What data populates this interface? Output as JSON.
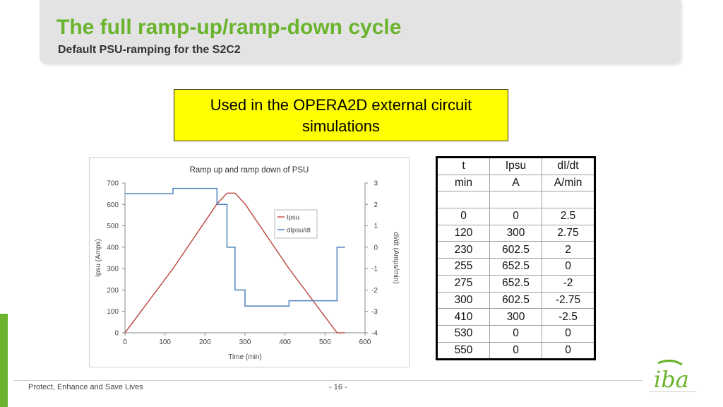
{
  "slide": {
    "title": "The full ramp-up/ramp-down cycle",
    "subtitle": "Default PSU-ramping for the S2C2",
    "callout": "Used in the OPERA2D external circuit simulations",
    "footer": "Protect, Enhance and Save Lives",
    "page_number": "- 16 -",
    "logo_text": "iba",
    "accent_color": "#6ab42d",
    "callout_color": "#ffff00"
  },
  "table": {
    "headers": [
      "t",
      "Ipsu",
      "dI/dt"
    ],
    "units": [
      "min",
      "A",
      "A/min"
    ],
    "rows": [
      [
        "",
        "",
        ""
      ],
      [
        "0",
        "0",
        "2.5"
      ],
      [
        "120",
        "300",
        "2.75"
      ],
      [
        "230",
        "602.5",
        "2"
      ],
      [
        "255",
        "652.5",
        "0"
      ],
      [
        "275",
        "652.5",
        "-2"
      ],
      [
        "300",
        "602.5",
        "-2.75"
      ],
      [
        "410",
        "300",
        "-2.5"
      ],
      [
        "530",
        "0",
        "0"
      ],
      [
        "550",
        "0",
        "0"
      ]
    ]
  },
  "chart_data": {
    "type": "line",
    "title": "Ramp up and ramp down of PSU",
    "xlabel": "Time (min)",
    "ylabel": "Ipsu (Amps)",
    "y2label": "dI/dt (Amps/min)",
    "xlim": [
      0,
      600
    ],
    "ylim": [
      0,
      700
    ],
    "y2lim": [
      -4,
      3
    ],
    "xticks": [
      "0",
      "100",
      "200",
      "300",
      "400",
      "500",
      "600"
    ],
    "yticks": [
      "0",
      "100",
      "200",
      "300",
      "400",
      "500",
      "600",
      "700"
    ],
    "y2ticks": [
      "-4",
      "-3",
      "-2",
      "-1",
      "0",
      "1",
      "2",
      "3"
    ],
    "grid": false,
    "legend": "center-right",
    "series": [
      {
        "name": "Ipsu",
        "axis": "left",
        "color": "#c0504d",
        "x": [
          0,
          120,
          230,
          255,
          275,
          300,
          410,
          530,
          550
        ],
        "y": [
          0,
          300,
          602.5,
          652.5,
          652.5,
          602.5,
          300,
          0,
          0
        ]
      },
      {
        "name": "dIpsu/dt",
        "axis": "right",
        "color": "#4f81bd",
        "step": true,
        "x": [
          0,
          120,
          230,
          255,
          275,
          300,
          410,
          530,
          550
        ],
        "y": [
          2.5,
          2.75,
          2,
          0,
          -2,
          -2.75,
          -2.5,
          0,
          0
        ]
      }
    ]
  }
}
